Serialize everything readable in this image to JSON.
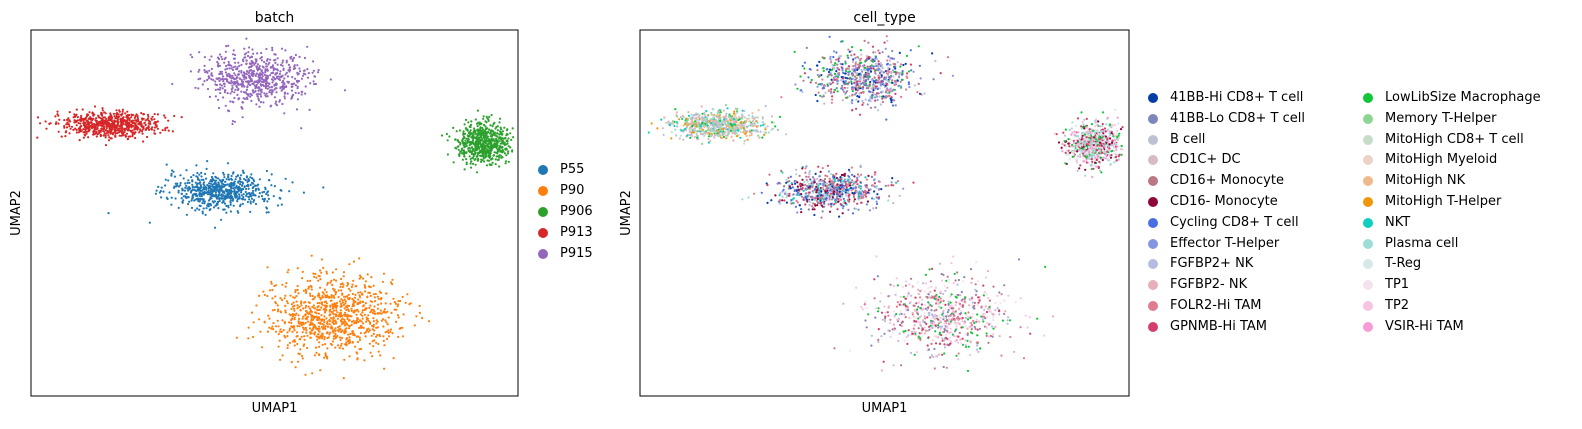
{
  "chart_data": [
    {
      "type": "scatter",
      "title": "batch",
      "xlabel": "UMAP1",
      "ylabel": "UMAP2",
      "grid": false,
      "legend": {
        "placement": "right",
        "columns": 1
      },
      "series": [
        {
          "name": "P55",
          "color": "#1f77b4",
          "cluster": {
            "cx": 0.39,
            "cy": 0.56,
            "sx": 0.12,
            "sy": 0.055
          }
        },
        {
          "name": "P90",
          "color": "#ff7f0e",
          "cluster": {
            "cx": 0.62,
            "cy": 0.22,
            "sx": 0.15,
            "sy": 0.12
          }
        },
        {
          "name": "P906",
          "color": "#2ca02c",
          "cluster": {
            "cx": 0.93,
            "cy": 0.69,
            "sx": 0.06,
            "sy": 0.06
          }
        },
        {
          "name": "P913",
          "color": "#d62728",
          "cluster": {
            "cx": 0.16,
            "cy": 0.74,
            "sx": 0.11,
            "sy": 0.04
          }
        },
        {
          "name": "P915",
          "color": "#9467bd",
          "cluster": {
            "cx": 0.46,
            "cy": 0.87,
            "sx": 0.12,
            "sy": 0.08
          }
        }
      ]
    },
    {
      "type": "scatter",
      "title": "cell_type",
      "xlabel": "UMAP1",
      "ylabel": "UMAP2",
      "grid": false,
      "legend": {
        "placement": "right",
        "columns": 2
      },
      "categories": [
        {
          "name": "41BB-Hi CD8+ T cell",
          "color": "#023fa5"
        },
        {
          "name": "41BB-Lo CD8+ T cell",
          "color": "#7d87b9"
        },
        {
          "name": "B cell",
          "color": "#bec1d4"
        },
        {
          "name": "CD1C+ DC",
          "color": "#d6bcc0"
        },
        {
          "name": "CD16+ Monocyte",
          "color": "#bb7784"
        },
        {
          "name": "CD16- Monocyte",
          "color": "#8e063b"
        },
        {
          "name": "Cycling CD8+ T cell",
          "color": "#4a6fe3"
        },
        {
          "name": "Effector T-Helper",
          "color": "#8595e1"
        },
        {
          "name": "FGFBP2+ NK",
          "color": "#b5bbe3"
        },
        {
          "name": "FGFBP2- NK",
          "color": "#e6afb9"
        },
        {
          "name": "FOLR2-Hi TAM",
          "color": "#e07b91"
        },
        {
          "name": "GPNMB-Hi TAM",
          "color": "#d33f6a"
        },
        {
          "name": "LowLibSize Macrophage",
          "color": "#11c638"
        },
        {
          "name": "Memory T-Helper",
          "color": "#8dd593"
        },
        {
          "name": "MitoHigh CD8+ T cell",
          "color": "#c6dec7"
        },
        {
          "name": "MitoHigh Myeloid",
          "color": "#ead3c6"
        },
        {
          "name": "MitoHigh NK",
          "color": "#f0b98d"
        },
        {
          "name": "MitoHigh T-Helper",
          "color": "#ef9708"
        },
        {
          "name": "NKT",
          "color": "#0fcfc0"
        },
        {
          "name": "Plasma cell",
          "color": "#9cded6"
        },
        {
          "name": "T-Reg",
          "color": "#d5eae7"
        },
        {
          "name": "TP1",
          "color": "#f3e1eb"
        },
        {
          "name": "TP2",
          "color": "#f6c4e1"
        },
        {
          "name": "VSIR-Hi TAM",
          "color": "#f79cd4"
        }
      ]
    }
  ]
}
